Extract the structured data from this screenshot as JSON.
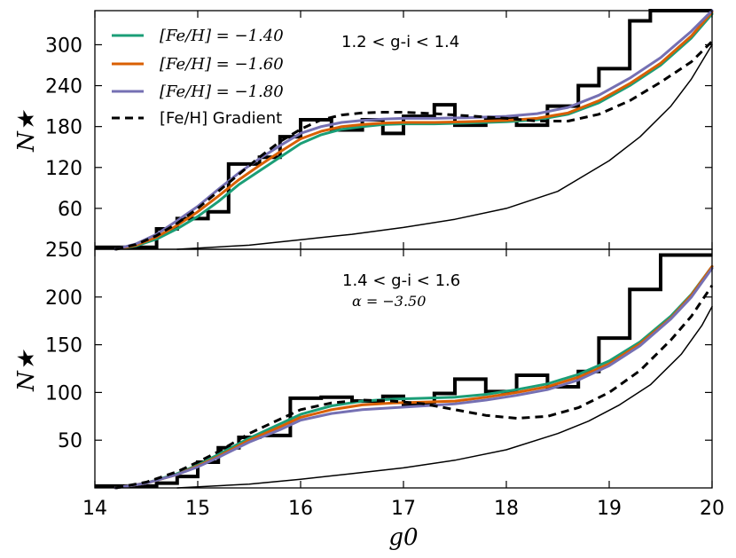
{
  "chart_data": [
    {
      "type": "line",
      "panel": "top",
      "annotation": "1.2 < g-i < 1.4",
      "ylabel": "N★",
      "xlim": [
        14,
        20
      ],
      "ylim": [
        0,
        350
      ],
      "yticks": [
        60,
        120,
        180,
        240,
        300
      ],
      "ytick_labels": [
        "60",
        "120",
        "180",
        "240",
        "300"
      ],
      "corner_label": "250",
      "legend": {
        "placement": "top-left",
        "entries": [
          {
            "label": "[Fe/H] = −1.40",
            "color": "#1b9e77",
            "style": "solid"
          },
          {
            "label": "[Fe/H] = −1.60",
            "color": "#d95f02",
            "style": "solid"
          },
          {
            "label": "[Fe/H] = −1.80",
            "color": "#7570b3",
            "style": "solid"
          },
          {
            "label": "[Fe/H] Gradient",
            "color": "#000000",
            "style": "dashed"
          }
        ]
      },
      "histogram": {
        "color": "#000000",
        "edges": [
          14.0,
          14.6,
          14.8,
          15.1,
          15.3,
          15.6,
          15.8,
          16.0,
          16.3,
          16.6,
          16.8,
          17.0,
          17.3,
          17.5,
          17.8,
          18.1,
          18.4,
          18.7,
          18.9,
          19.2,
          19.4,
          19.7,
          20.0
        ],
        "counts": [
          3,
          30,
          45,
          55,
          125,
          135,
          165,
          190,
          175,
          190,
          170,
          195,
          212,
          182,
          192,
          182,
          210,
          240,
          265,
          335,
          352,
          352
        ]
      },
      "series": [
        {
          "name": "[Fe/H] = −1.40",
          "color": "#1b9e77",
          "x": [
            14.2,
            14.4,
            14.6,
            14.8,
            15.0,
            15.2,
            15.4,
            15.6,
            15.8,
            16.0,
            16.2,
            16.4,
            16.6,
            16.8,
            17.0,
            17.3,
            17.6,
            18.0,
            18.3,
            18.6,
            18.9,
            19.2,
            19.5,
            19.8,
            20.0
          ],
          "y": [
            0,
            5,
            15,
            30,
            48,
            70,
            95,
            115,
            135,
            155,
            168,
            176,
            180,
            183,
            184,
            184,
            185,
            187,
            190,
            198,
            215,
            240,
            270,
            310,
            345
          ]
        },
        {
          "name": "[Fe/H] = −1.60",
          "color": "#d95f02",
          "x": [
            14.2,
            14.4,
            14.6,
            14.8,
            15.0,
            15.2,
            15.4,
            15.6,
            15.8,
            16.0,
            16.2,
            16.4,
            16.6,
            16.8,
            17.0,
            17.3,
            17.6,
            18.0,
            18.3,
            18.6,
            18.9,
            19.2,
            19.5,
            19.8,
            20.0
          ],
          "y": [
            0,
            6,
            18,
            35,
            55,
            78,
            102,
            123,
            143,
            162,
            173,
            180,
            183,
            185,
            186,
            186,
            187,
            189,
            192,
            200,
            218,
            243,
            273,
            313,
            348
          ]
        },
        {
          "name": "[Fe/H] = −1.80",
          "color": "#7570b3",
          "x": [
            14.2,
            14.4,
            14.6,
            14.8,
            15.0,
            15.2,
            15.4,
            15.6,
            15.8,
            16.0,
            16.2,
            16.4,
            16.6,
            16.8,
            17.0,
            17.3,
            17.6,
            18.0,
            18.3,
            18.6,
            18.9,
            19.2,
            19.5,
            19.8,
            20.0
          ],
          "y": [
            0,
            8,
            22,
            42,
            63,
            88,
            112,
            133,
            152,
            170,
            180,
            186,
            189,
            191,
            192,
            192,
            193,
            195,
            199,
            208,
            226,
            251,
            281,
            320,
            350
          ]
        },
        {
          "name": "[Fe/H] Gradient",
          "color": "#000000",
          "dash": true,
          "x": [
            14.2,
            14.4,
            14.6,
            14.8,
            15.0,
            15.2,
            15.4,
            15.6,
            15.8,
            16.0,
            16.2,
            16.4,
            16.6,
            16.8,
            17.0,
            17.3,
            17.6,
            18.0,
            18.3,
            18.6,
            18.9,
            19.2,
            19.5,
            19.8,
            20.0
          ],
          "y": [
            0,
            7,
            20,
            38,
            60,
            85,
            110,
            135,
            158,
            176,
            190,
            197,
            200,
            201,
            201,
            199,
            196,
            192,
            188,
            188,
            198,
            218,
            245,
            275,
            305
          ]
        },
        {
          "name": "background",
          "color": "#000000",
          "thin": true,
          "x": [
            14.8,
            15.5,
            16.0,
            16.5,
            17.0,
            17.5,
            18.0,
            18.5,
            19.0,
            19.3,
            19.6,
            19.8,
            20.0
          ],
          "y": [
            0,
            6,
            14,
            22,
            32,
            44,
            60,
            85,
            130,
            165,
            210,
            250,
            300
          ]
        }
      ]
    },
    {
      "type": "line",
      "panel": "bottom",
      "annotation": "1.4 < g-i < 1.6",
      "annotation2": "α = −3.50",
      "xlabel": "g0",
      "ylabel": "N★",
      "xlim": [
        14,
        20
      ],
      "ylim": [
        0,
        250
      ],
      "xticks": [
        14,
        15,
        16,
        17,
        18,
        19,
        20
      ],
      "xtick_labels": [
        "14",
        "15",
        "16",
        "17",
        "18",
        "19",
        "20"
      ],
      "yticks": [
        50,
        100,
        150,
        200
      ],
      "ytick_labels": [
        "50",
        "100",
        "150",
        "200"
      ],
      "histogram": {
        "color": "#000000",
        "edges": [
          14.0,
          14.6,
          14.8,
          15.0,
          15.2,
          15.4,
          15.6,
          15.9,
          16.2,
          16.5,
          16.8,
          17.0,
          17.3,
          17.5,
          17.8,
          18.1,
          18.4,
          18.7,
          18.9,
          19.2,
          19.5,
          19.8,
          20.0
        ],
        "counts": [
          2,
          5,
          12,
          27,
          42,
          53,
          55,
          94,
          95,
          91,
          96,
          87,
          99,
          114,
          101,
          118,
          106,
          122,
          157,
          208,
          244,
          244
        ]
      },
      "series": [
        {
          "name": "[Fe/H] = −1.40",
          "color": "#1b9e77",
          "x": [
            14.2,
            14.5,
            14.8,
            15.0,
            15.2,
            15.5,
            15.8,
            16.0,
            16.3,
            16.6,
            16.9,
            17.2,
            17.5,
            17.8,
            18.1,
            18.4,
            18.7,
            19.0,
            19.3,
            19.6,
            19.8,
            20.0
          ],
          "y": [
            0,
            5,
            15,
            24,
            35,
            52,
            67,
            77,
            86,
            91,
            93,
            94,
            95,
            98,
            103,
            109,
            119,
            133,
            153,
            180,
            203,
            232
          ]
        },
        {
          "name": "[Fe/H] = −1.60",
          "color": "#d95f02",
          "x": [
            14.2,
            14.5,
            14.8,
            15.0,
            15.2,
            15.5,
            15.8,
            16.0,
            16.3,
            16.6,
            16.9,
            17.2,
            17.5,
            17.8,
            18.1,
            18.4,
            18.7,
            19.0,
            19.3,
            19.6,
            19.8,
            20.0
          ],
          "y": [
            0,
            5,
            14,
            23,
            33,
            50,
            64,
            74,
            82,
            87,
            89,
            90,
            91,
            95,
            100,
            106,
            116,
            130,
            151,
            178,
            202,
            232
          ]
        },
        {
          "name": "[Fe/H] = −1.80",
          "color": "#7570b3",
          "x": [
            14.2,
            14.5,
            14.8,
            15.0,
            15.2,
            15.5,
            15.8,
            16.0,
            16.3,
            16.6,
            16.9,
            17.2,
            17.5,
            17.8,
            18.1,
            18.4,
            18.7,
            19.0,
            19.3,
            19.6,
            19.8,
            20.0
          ],
          "y": [
            0,
            5,
            14,
            22,
            32,
            48,
            61,
            71,
            78,
            82,
            84,
            86,
            88,
            92,
            97,
            103,
            113,
            128,
            149,
            177,
            200,
            230
          ]
        },
        {
          "name": "[Fe/H] Gradient",
          "color": "#000000",
          "dash": true,
          "x": [
            14.2,
            14.5,
            14.8,
            15.0,
            15.2,
            15.5,
            15.8,
            16.0,
            16.3,
            16.6,
            16.9,
            17.2,
            17.5,
            17.8,
            18.1,
            18.4,
            18.7,
            19.0,
            19.3,
            19.6,
            19.8,
            20.0
          ],
          "y": [
            0,
            6,
            17,
            27,
            38,
            57,
            72,
            82,
            89,
            92,
            91,
            88,
            82,
            76,
            73,
            75,
            84,
            100,
            123,
            155,
            180,
            212
          ]
        },
        {
          "name": "background",
          "color": "#000000",
          "thin": true,
          "x": [
            14.8,
            15.5,
            16.0,
            16.5,
            17.0,
            17.5,
            18.0,
            18.5,
            18.8,
            19.1,
            19.4,
            19.7,
            19.9,
            20.0
          ],
          "y": [
            0,
            4,
            9,
            15,
            21,
            29,
            40,
            57,
            70,
            87,
            108,
            140,
            170,
            190
          ]
        }
      ]
    }
  ]
}
